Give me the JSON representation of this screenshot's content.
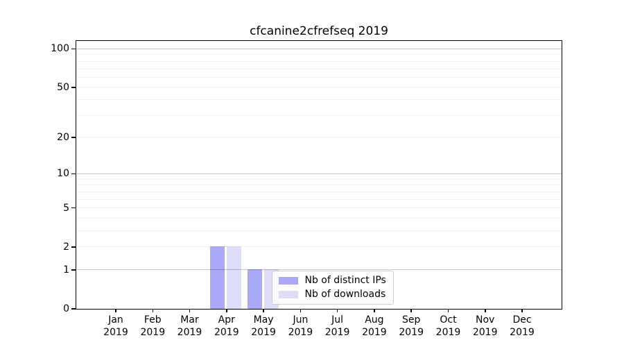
{
  "chart_data": {
    "type": "bar",
    "title": "cfcanine2cfrefseq 2019",
    "x_months": [
      "Jan",
      "Feb",
      "Mar",
      "Apr",
      "May",
      "Jun",
      "Jul",
      "Aug",
      "Sep",
      "Oct",
      "Nov",
      "Dec"
    ],
    "x_year": "2019",
    "series": [
      {
        "name": "Nb of distinct IPs",
        "color": "#a9a9f7",
        "values": [
          0,
          0,
          0,
          2,
          1,
          0,
          0,
          0,
          0,
          0,
          0,
          0
        ]
      },
      {
        "name": "Nb of downloads",
        "color": "#ddddfa",
        "values": [
          0,
          0,
          0,
          2,
          1,
          0,
          0,
          0,
          0,
          0,
          0,
          0
        ]
      }
    ],
    "yscale": "log10(1+v)",
    "ytick_labels": [
      "100",
      "50",
      "20",
      "10",
      "5",
      "2",
      "1",
      "0"
    ],
    "ytick_values": [
      100,
      50,
      20,
      10,
      5,
      2,
      1,
      0
    ],
    "ylim": [
      0,
      115
    ],
    "grid": "horizontal major and minor, drawn over bars",
    "legend_position": "inside lower center-right"
  },
  "colors": {
    "background": "#ffffff",
    "axis_frame": "#000000",
    "grid_major": "#c7c7c7",
    "grid_minor": "#f0f0f0",
    "legend_border": "#cccccc",
    "legend_background": "rgba(255,255,255,0.8)",
    "text": "#000000"
  }
}
